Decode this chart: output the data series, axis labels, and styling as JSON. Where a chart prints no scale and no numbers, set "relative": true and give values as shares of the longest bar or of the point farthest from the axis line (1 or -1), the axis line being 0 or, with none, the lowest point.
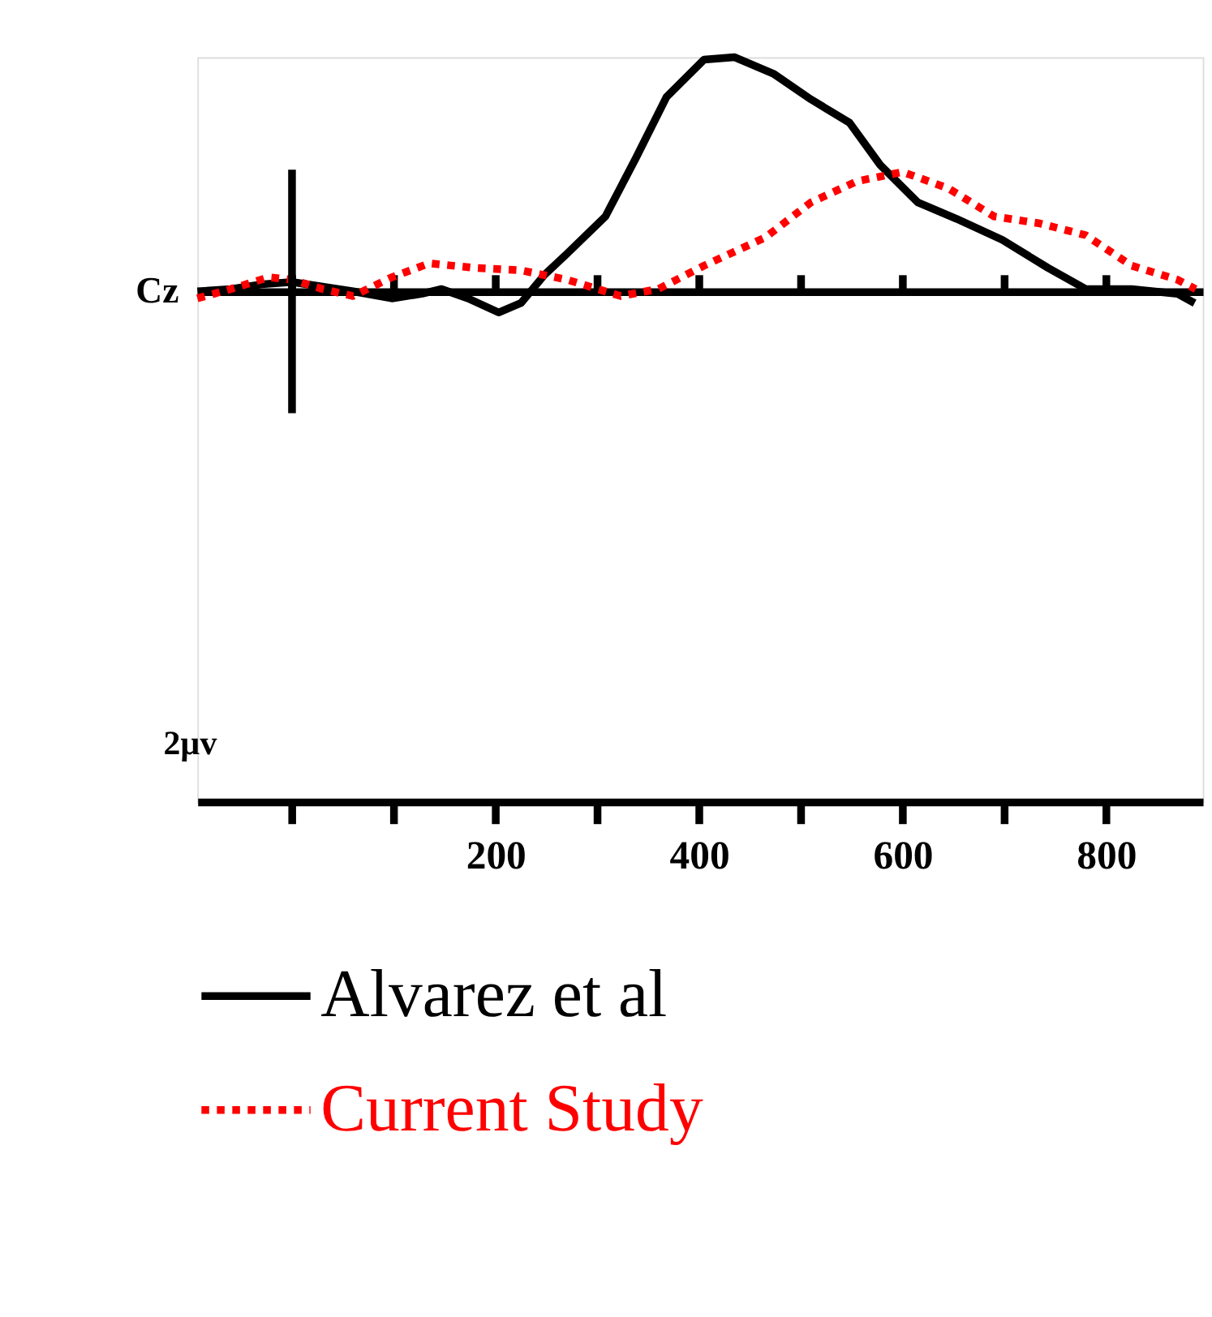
{
  "chart_data": {
    "type": "line",
    "relative": true,
    "ylabel": "Cz",
    "annotations": [
      "2µv"
    ],
    "x": [
      -93,
      -60,
      -30,
      0,
      30,
      60,
      98,
      128,
      147,
      173,
      203,
      225,
      248,
      270,
      308,
      338,
      368,
      405,
      435,
      473,
      510,
      548,
      578,
      615,
      653,
      698,
      743,
      780,
      825,
      870,
      887
    ],
    "xlim": [
      -93,
      895
    ],
    "xticks": [
      {
        "value": 0,
        "label": null
      },
      {
        "value": 100,
        "label": null
      },
      200,
      {
        "value": 300,
        "label": null
      },
      400,
      {
        "value": 500,
        "label": null
      },
      600,
      {
        "value": 700,
        "label": null
      },
      800
    ],
    "ref_lines": [
      {
        "axis": "x",
        "value": 0,
        "color": "#000000"
      }
    ],
    "series": [
      {
        "name": "Alvarez et al",
        "color": "#000000",
        "line_style": "solid",
        "values": [
          0.0,
          0.01,
          0.03,
          0.04,
          0.02,
          0.0,
          -0.03,
          -0.01,
          0.01,
          -0.03,
          -0.09,
          -0.05,
          0.07,
          0.16,
          0.32,
          0.57,
          0.83,
          0.99,
          1.0,
          0.93,
          0.82,
          0.72,
          0.54,
          0.38,
          0.31,
          0.22,
          0.1,
          0.01,
          0.01,
          -0.01,
          -0.05
        ]
      },
      {
        "name": "Current Study",
        "color": "#ff0000",
        "line_style": "dotted",
        "x": [
          -93,
          -60,
          -23,
          0,
          30,
          60,
          98,
          135,
          180,
          225,
          270,
          323,
          360,
          405,
          465,
          510,
          555,
          600,
          645,
          690,
          735,
          780,
          825,
          870,
          888
        ],
        "values": [
          -0.03,
          0.01,
          0.06,
          0.05,
          0.01,
          -0.02,
          0.06,
          0.12,
          0.1,
          0.09,
          0.05,
          -0.02,
          0.01,
          0.11,
          0.23,
          0.38,
          0.47,
          0.51,
          0.44,
          0.32,
          0.29,
          0.24,
          0.11,
          0.05,
          0.01
        ]
      }
    ],
    "legend": "bottom",
    "grid": false,
    "marker": "none",
    "tick_labels": "x"
  }
}
